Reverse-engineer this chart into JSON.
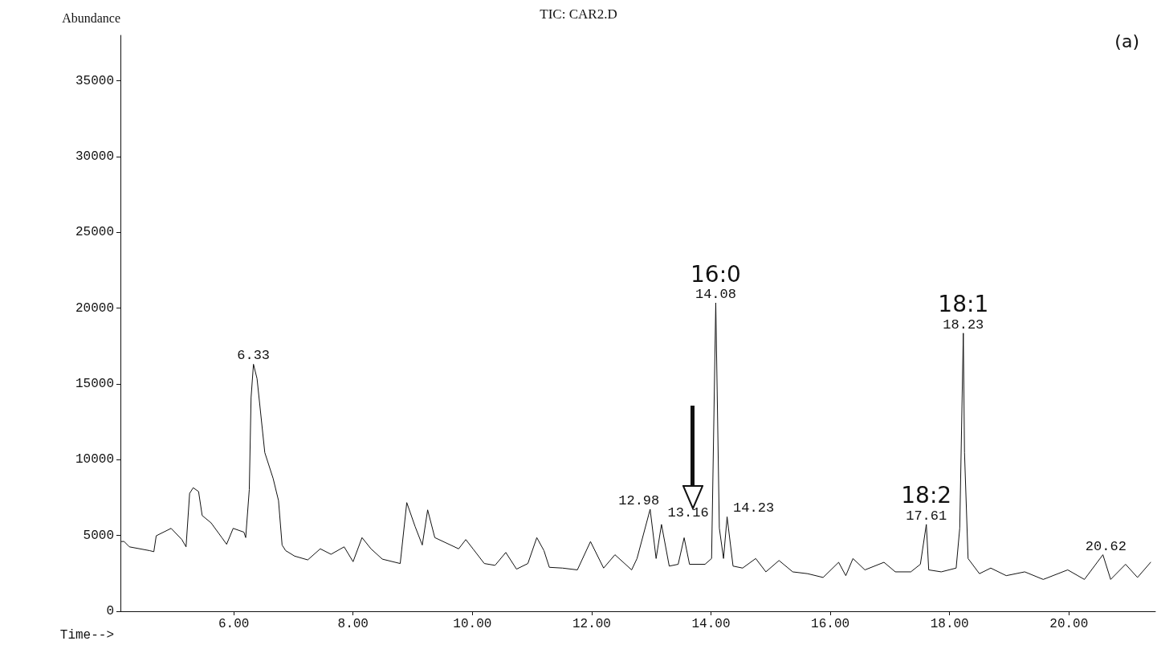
{
  "chart_data": {
    "type": "line",
    "title": "TIC: CAR2.D",
    "xlabel": "Time-->",
    "ylabel": "Abundance",
    "xlim": [
      4.1,
      21.45
    ],
    "ylim": [
      0,
      38000
    ],
    "xticks": [
      {
        "value": 6,
        "label": "6.00"
      },
      {
        "value": 8,
        "label": "8.00"
      },
      {
        "value": 10,
        "label": "10.00"
      },
      {
        "value": 12,
        "label": "12.00"
      },
      {
        "value": 14,
        "label": "14.00"
      },
      {
        "value": 16,
        "label": "16.00"
      },
      {
        "value": 18,
        "label": "18.00"
      },
      {
        "value": 20,
        "label": "20.00"
      }
    ],
    "yticks": [
      0,
      5000,
      10000,
      15000,
      20000,
      25000,
      30000,
      35000
    ],
    "grid": false,
    "marker": "none",
    "line_style": "solid",
    "series": [
      {
        "color": "#111111",
        "x": [
          4.12,
          4.16,
          4.25,
          4.59,
          4.66,
          4.7,
          4.95,
          5.13,
          5.2,
          5.26,
          5.32,
          5.41,
          5.47,
          5.62,
          5.8,
          5.88,
          5.99,
          6.17,
          6.2,
          6.26,
          6.29,
          6.33,
          6.39,
          6.52,
          6.66,
          6.75,
          6.81,
          6.87,
          7.02,
          7.24,
          7.45,
          7.63,
          7.85,
          8.0,
          8.15,
          8.3,
          8.49,
          8.79,
          8.9,
          9.04,
          9.16,
          9.25,
          9.37,
          9.77,
          9.89,
          10.01,
          10.2,
          10.38,
          10.56,
          10.74,
          10.93,
          11.08,
          11.2,
          11.29,
          11.51,
          11.76,
          11.98,
          12.2,
          12.39,
          12.67,
          12.76,
          12.98,
          13.08,
          13.17,
          13.3,
          13.45,
          13.55,
          13.64,
          13.9,
          14.01,
          14.08,
          14.14,
          14.21,
          14.27,
          14.37,
          14.53,
          14.75,
          14.92,
          15.14,
          15.37,
          15.62,
          15.88,
          16.14,
          16.26,
          16.38,
          16.58,
          16.9,
          17.09,
          17.35,
          17.51,
          17.61,
          17.65,
          17.86,
          18.11,
          18.17,
          18.23,
          18.25,
          18.31,
          18.5,
          18.69,
          18.95,
          19.26,
          19.57,
          19.98,
          20.26,
          20.57,
          20.7,
          20.95,
          21.15,
          21.37
        ],
        "values": [
          4600,
          4610,
          4250,
          4000,
          3930,
          4980,
          5470,
          4730,
          4250,
          7780,
          8150,
          7900,
          6320,
          5830,
          4860,
          4420,
          5470,
          5220,
          4860,
          8030,
          14100,
          16300,
          15350,
          10470,
          8760,
          7300,
          4370,
          4000,
          3640,
          3390,
          4120,
          3760,
          4250,
          3270,
          4860,
          4120,
          3440,
          3150,
          7170,
          5590,
          4370,
          6690,
          4860,
          4120,
          4730,
          4120,
          3150,
          3030,
          3880,
          2780,
          3150,
          4860,
          4000,
          2900,
          2850,
          2730,
          4600,
          2850,
          3730,
          2730,
          3480,
          6730,
          3480,
          5730,
          2980,
          3100,
          4850,
          3100,
          3100,
          3480,
          20350,
          5480,
          3480,
          6230,
          2980,
          2850,
          3480,
          2600,
          3350,
          2600,
          2480,
          2230,
          3230,
          2350,
          3480,
          2730,
          3230,
          2600,
          2600,
          3100,
          5730,
          2730,
          2600,
          2850,
          5480,
          18350,
          10480,
          3480,
          2480,
          2850,
          2350,
          2600,
          2100,
          2730,
          2100,
          3730,
          2100,
          3100,
          2230,
          3230
        ]
      }
    ],
    "annotations": [
      "(a)",
      {
        "text": "6.33",
        "x": 6.33,
        "y": 16300
      },
      {
        "text": "12.98",
        "x": 12.98,
        "y": 6730
      },
      {
        "text": "13.16",
        "x": 13.16,
        "y": 5730
      },
      {
        "text": "14.23",
        "x": 14.23,
        "y": 6230
      },
      {
        "text": "14.08",
        "x": 14.08,
        "y": 20350
      },
      "16:0",
      {
        "text": "17.61",
        "x": 17.61,
        "y": 5730
      },
      "18:2",
      {
        "text": "18.23",
        "x": 18.23,
        "y": 18350
      },
      "18:1",
      {
        "text": "20.62",
        "x": 20.62,
        "y": 3730
      }
    ]
  }
}
